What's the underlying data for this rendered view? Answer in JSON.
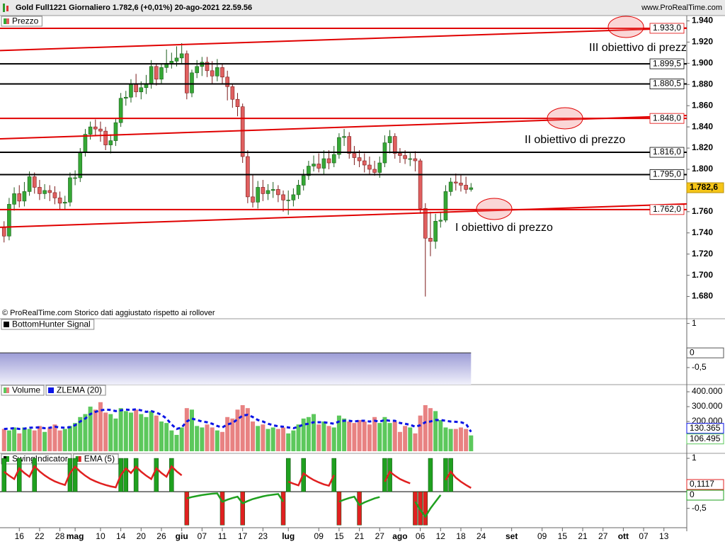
{
  "chart_data": [
    {
      "type": "candlestick",
      "title": "Gold Full1221 Giornaliero 1.782,6 (+0,01%) 20-ago-2021 22.59.56",
      "source": "www.ProRealTime.com",
      "note": "© ProRealTime.com  Storico dati aggiustato rispetto ai rollover",
      "legend": "Prezzo",
      "up_color": "#35a835",
      "down_color": "#e06060",
      "open": [
        1745,
        1737,
        1767,
        1777,
        1770,
        1779,
        1793,
        1783,
        1777,
        1780,
        1778,
        1773,
        1768,
        1769,
        1792,
        1792,
        1816,
        1833,
        1840,
        1838,
        1836,
        1823,
        1827,
        1844,
        1867,
        1868,
        1880,
        1873,
        1877,
        1881,
        1897,
        1885,
        1896,
        1900,
        1902,
        1905,
        1909,
        1872,
        1891,
        1897,
        1901,
        1893,
        1888,
        1896,
        1887,
        1878,
        1866,
        1859,
        1812,
        1774,
        1769,
        1783,
        1777,
        1780,
        1781,
        1776,
        1771,
        1771,
        1776,
        1785,
        1794,
        1803,
        1805,
        1801,
        1810,
        1806,
        1814,
        1830,
        1831,
        1815,
        1811,
        1808,
        1804,
        1800,
        1797,
        1806,
        1825,
        1831,
        1815,
        1813,
        1810,
        1810,
        1808,
        1763,
        1735,
        1732,
        1751,
        1752,
        1779,
        1788,
        1787,
        1785,
        1781
      ],
      "high": [
        1751,
        1773,
        1783,
        1785,
        1788,
        1798,
        1797,
        1790,
        1786,
        1785,
        1784,
        1779,
        1775,
        1797,
        1799,
        1820,
        1838,
        1845,
        1847,
        1845,
        1840,
        1833,
        1848,
        1872,
        1874,
        1885,
        1890,
        1883,
        1889,
        1903,
        1900,
        1900,
        1913,
        1910,
        1916,
        1919,
        1912,
        1894,
        1903,
        1906,
        1906,
        1902,
        1904,
        1900,
        1893,
        1880,
        1872,
        1862,
        1818,
        1795,
        1789,
        1790,
        1786,
        1788,
        1785,
        1780,
        1780,
        1782,
        1790,
        1800,
        1808,
        1813,
        1815,
        1818,
        1818,
        1822,
        1834,
        1838,
        1835,
        1822,
        1818,
        1815,
        1812,
        1808,
        1812,
        1832,
        1837,
        1834,
        1820,
        1818,
        1816,
        1817,
        1810,
        1768,
        1760,
        1758,
        1760,
        1785,
        1792,
        1796,
        1795,
        1793,
        1787
      ],
      "low": [
        1731,
        1733,
        1761,
        1764,
        1765,
        1775,
        1777,
        1771,
        1772,
        1770,
        1767,
        1762,
        1762,
        1765,
        1785,
        1788,
        1812,
        1828,
        1832,
        1826,
        1818,
        1815,
        1822,
        1840,
        1860,
        1863,
        1868,
        1866,
        1871,
        1876,
        1879,
        1880,
        1891,
        1895,
        1897,
        1899,
        1866,
        1868,
        1886,
        1888,
        1887,
        1880,
        1883,
        1880,
        1865,
        1858,
        1850,
        1806,
        1768,
        1764,
        1763,
        1770,
        1771,
        1773,
        1769,
        1760,
        1757,
        1765,
        1772,
        1780,
        1790,
        1798,
        1797,
        1795,
        1800,
        1802,
        1810,
        1822,
        1810,
        1804,
        1802,
        1797,
        1795,
        1794,
        1792,
        1802,
        1815,
        1810,
        1806,
        1805,
        1803,
        1798,
        1758,
        1680,
        1718,
        1725,
        1745,
        1750,
        1775,
        1780,
        1779,
        1777,
        1779
      ],
      "close": [
        1737,
        1767,
        1777,
        1770,
        1779,
        1793,
        1783,
        1777,
        1780,
        1778,
        1773,
        1768,
        1769,
        1792,
        1792,
        1816,
        1833,
        1840,
        1838,
        1836,
        1823,
        1827,
        1844,
        1867,
        1868,
        1880,
        1873,
        1877,
        1881,
        1897,
        1885,
        1896,
        1900,
        1902,
        1905,
        1909,
        1872,
        1891,
        1897,
        1901,
        1893,
        1888,
        1896,
        1887,
        1878,
        1866,
        1859,
        1812,
        1774,
        1769,
        1783,
        1777,
        1780,
        1781,
        1776,
        1771,
        1771,
        1776,
        1785,
        1794,
        1803,
        1805,
        1801,
        1810,
        1806,
        1814,
        1830,
        1831,
        1815,
        1811,
        1808,
        1804,
        1800,
        1797,
        1806,
        1825,
        1831,
        1815,
        1813,
        1810,
        1810,
        1808,
        1763,
        1735,
        1732,
        1751,
        1752,
        1779,
        1788,
        1787,
        1785,
        1781,
        1782.6
      ],
      "last_label": "1.782,6",
      "ylim": [
        1659,
        1945
      ],
      "yticks": [
        {
          "value": 1940,
          "label": "1.940"
        },
        {
          "value": 1920,
          "label": "1.920"
        },
        {
          "value": 1900,
          "label": "1.900"
        },
        {
          "value": 1880,
          "label": "1.880"
        },
        {
          "value": 1860,
          "label": "1.860"
        },
        {
          "value": 1840,
          "label": "1.840"
        },
        {
          "value": 1820,
          "label": "1.820"
        },
        {
          "value": 1800,
          "label": "1.800"
        },
        {
          "value": 1780,
          "label": "1.780"
        },
        {
          "value": 1760,
          "label": "1.760"
        },
        {
          "value": 1740,
          "label": "1.740"
        },
        {
          "value": 1720,
          "label": "1.720"
        },
        {
          "value": 1700,
          "label": "1.700"
        },
        {
          "value": 1680,
          "label": "1.680"
        }
      ],
      "levels": [
        {
          "value": 1933,
          "label": "1.933,0",
          "color": "#e00000"
        },
        {
          "value": 1899.5,
          "label": "1.899,5",
          "color": "#000000"
        },
        {
          "value": 1880.5,
          "label": "1.880,5",
          "color": "#000000"
        },
        {
          "value": 1848,
          "label": "1.848,0",
          "color": "#e00000"
        },
        {
          "value": 1816,
          "label": "1.816,0",
          "color": "#000000"
        },
        {
          "value": 1795,
          "label": "1.795,0",
          "color": "#000000"
        },
        {
          "value": 1762,
          "label": "1.762,0",
          "color": "#e00000"
        }
      ],
      "trendlines": [
        {
          "start": 1912,
          "end": 1933.3
        },
        {
          "start": 1828.7,
          "end": 1850.7
        },
        {
          "start": 1745.3,
          "end": 1767.3
        }
      ],
      "trendline_color": "#e00000",
      "annotations": [
        "III obiettivo di prezzo",
        "II obiettivo di prezzo",
        "I obiettivo di prezzo"
      ]
    },
    {
      "type": "area",
      "legend": "BottomHunter Signal",
      "values": [
        0,
        0,
        0,
        0,
        0,
        0,
        0,
        0,
        0,
        0,
        0,
        0,
        0,
        0,
        0,
        0,
        0,
        0,
        0,
        0,
        0,
        0,
        0,
        0,
        0,
        0,
        0,
        0,
        0,
        0,
        0,
        0,
        0,
        0,
        0,
        0,
        0,
        0,
        0,
        0,
        0,
        0,
        0,
        0,
        0,
        0,
        0,
        0,
        0,
        0,
        0,
        0,
        0,
        0,
        0,
        0,
        0,
        0,
        0,
        0,
        0,
        0,
        0,
        0,
        0,
        0,
        0,
        0,
        0,
        0,
        0,
        0,
        0,
        0,
        0,
        0,
        0,
        0,
        0,
        0,
        0,
        0,
        0,
        0,
        0,
        0,
        0,
        0,
        0,
        0,
        0,
        0,
        0
      ],
      "last_label": "0",
      "ylim": [
        -1.08,
        1.16
      ],
      "yticks": [
        1,
        {
          "value": -0.5,
          "label": "-0,5"
        }
      ]
    },
    {
      "type": "bar",
      "bar_colors": "price_direction",
      "series": [
        {
          "name": "Volume",
          "up_color": "#5cc85c",
          "down_color": "#e88282",
          "values": [
            150000,
            140000,
            160000,
            120000,
            160000,
            150000,
            140000,
            170000,
            130000,
            160000,
            180000,
            140000,
            150000,
            170000,
            190000,
            230000,
            250000,
            300000,
            280000,
            330000,
            260000,
            250000,
            220000,
            290000,
            270000,
            260000,
            280000,
            250000,
            230000,
            270000,
            240000,
            200000,
            190000,
            140000,
            110000,
            160000,
            290000,
            280000,
            170000,
            160000,
            180000,
            160000,
            140000,
            130000,
            230000,
            220000,
            280000,
            310000,
            290000,
            200000,
            170000,
            180000,
            150000,
            160000,
            150000,
            160000,
            120000,
            140000,
            180000,
            220000,
            230000,
            250000,
            180000,
            200000,
            170000,
            160000,
            240000,
            220000,
            200000,
            190000,
            210000,
            200000,
            180000,
            230000,
            190000,
            230000,
            190000,
            200000,
            130000,
            170000,
            160000,
            120000,
            240000,
            310000,
            290000,
            270000,
            210000,
            160000,
            150000,
            150000,
            160000,
            150000,
            106495
          ],
          "last_label": "106.495"
        },
        {
          "name": "ZLEMA (20)",
          "color": "#0a14e6",
          "dashed": true,
          "values": [
            150000,
            152000,
            155000,
            150000,
            152000,
            158000,
            160000,
            160000,
            155000,
            158000,
            165000,
            160000,
            158000,
            162000,
            175000,
            200000,
            220000,
            250000,
            265000,
            275000,
            280000,
            278000,
            270000,
            275000,
            280000,
            278000,
            282000,
            275000,
            265000,
            270000,
            260000,
            245000,
            220000,
            180000,
            150000,
            160000,
            200000,
            220000,
            210000,
            200000,
            195000,
            185000,
            170000,
            160000,
            180000,
            190000,
            215000,
            240000,
            245000,
            230000,
            210000,
            200000,
            185000,
            175000,
            168000,
            165000,
            160000,
            155000,
            165000,
            180000,
            185000,
            195000,
            195000,
            195000,
            190000,
            185000,
            200000,
            205000,
            205000,
            200000,
            205000,
            205000,
            200000,
            205000,
            200000,
            210000,
            205000,
            205000,
            190000,
            185000,
            178000,
            165000,
            175000,
            195000,
            200000,
            210000,
            210000,
            205000,
            200000,
            198000,
            195000,
            185000,
            130365
          ],
          "last_label": "130.365"
        }
      ],
      "ylim": [
        -14000,
        448000
      ],
      "yticks": [
        {
          "value": 400000,
          "label": "400.000"
        },
        {
          "value": 300000,
          "label": "300.000"
        },
        {
          "value": 200000,
          "label": "200.000"
        }
      ]
    },
    {
      "type": "bar",
      "bar_colors": "sign",
      "series": [
        {
          "name": "SwingIndicator",
          "up_color": "#1fa01f",
          "down_color": "#e02020",
          "values": [
            1,
            0,
            0,
            1,
            0,
            0,
            1,
            0,
            0,
            0,
            0,
            0,
            0,
            1,
            1,
            0,
            0,
            0,
            0,
            0,
            0,
            0,
            0,
            1,
            1,
            0,
            1,
            0,
            0,
            0,
            1,
            0,
            0,
            1,
            0,
            0,
            -1,
            0,
            0,
            0,
            0,
            0,
            0,
            -1,
            0,
            0,
            0,
            -1,
            0,
            0,
            0,
            0,
            0,
            0,
            0,
            -1,
            1,
            0,
            0,
            1,
            0,
            0,
            0,
            0,
            0,
            1,
            -1,
            0,
            0,
            0,
            -1,
            0,
            0,
            0,
            0,
            1,
            1,
            0,
            0,
            0,
            0,
            -1,
            -1,
            -1,
            1,
            0,
            0,
            1,
            1,
            0,
            0,
            0,
            0
          ],
          "last_label": "0"
        },
        {
          "name": "EMA (5)",
          "color_by": "sign",
          "up_color": "#e02020",
          "down_color": "#1fa01f",
          "values": [
            0.6,
            0.48,
            0.38,
            0.7,
            0.56,
            0.45,
            0.76,
            0.61,
            0.49,
            0.39,
            0.31,
            0.25,
            0.2,
            0.56,
            0.75,
            0.6,
            0.48,
            0.38,
            0.31,
            0.25,
            0.2,
            0.16,
            0.13,
            0.5,
            0.7,
            0.56,
            0.75,
            0.6,
            0.48,
            0.38,
            0.7,
            0.56,
            0.45,
            0.76,
            0.61,
            0.49,
            -0.2,
            -0.16,
            -0.13,
            -0.1,
            -0.08,
            -0.06,
            -0.05,
            -0.3,
            -0.24,
            -0.19,
            -0.15,
            -0.35,
            -0.28,
            -0.22,
            -0.18,
            -0.14,
            -0.11,
            -0.09,
            -0.07,
            -0.3,
            0.3,
            0.24,
            0.19,
            0.55,
            0.44,
            0.35,
            0.28,
            0.22,
            0.18,
            0.5,
            -0.3,
            -0.24,
            -0.19,
            -0.15,
            -0.4,
            -0.32,
            -0.26,
            -0.2,
            -0.16,
            0.3,
            0.6,
            0.48,
            0.38,
            0.31,
            0.25,
            -0.3,
            -0.55,
            -0.75,
            -0.5,
            -0.3,
            -0.1,
            0.35,
            0.6,
            0.42,
            0.3,
            0.2,
            0.1117
          ],
          "last_label": "0,1117"
        }
      ],
      "ylim": [
        -1.08,
        1.15
      ],
      "yticks": [
        1,
        {
          "value": -0.5,
          "label": "-0,5"
        }
      ],
      "xlim": [
        -0.8,
        134.5
      ],
      "xticks": [
        {
          "value": 3,
          "label": "16"
        },
        {
          "value": 7,
          "label": "22"
        },
        {
          "value": 11,
          "label": "28"
        },
        {
          "value": 14,
          "label": "mag"
        },
        {
          "value": 19,
          "label": "10"
        },
        {
          "value": 23,
          "label": "14"
        },
        {
          "value": 27,
          "label": "20"
        },
        {
          "value": 31,
          "label": "26"
        },
        {
          "value": 35,
          "label": "giu"
        },
        {
          "value": 39,
          "label": "07"
        },
        {
          "value": 43,
          "label": "11"
        },
        {
          "value": 47,
          "label": "17"
        },
        {
          "value": 51,
          "label": "23"
        },
        {
          "value": 56,
          "label": "lug"
        },
        {
          "value": 62,
          "label": "09"
        },
        {
          "value": 66,
          "label": "15"
        },
        {
          "value": 70,
          "label": "21"
        },
        {
          "value": 74,
          "label": "27"
        },
        {
          "value": 78,
          "label": "ago"
        },
        {
          "value": 82,
          "label": "06"
        },
        {
          "value": 86,
          "label": "12"
        },
        {
          "value": 90,
          "label": "18"
        },
        {
          "value": 94,
          "label": "24"
        },
        {
          "value": 100,
          "label": "set"
        },
        {
          "value": 106,
          "label": "09"
        },
        {
          "value": 110,
          "label": "15"
        },
        {
          "value": 114,
          "label": "21"
        },
        {
          "value": 118,
          "label": "27"
        },
        {
          "value": 122,
          "label": "ott"
        },
        {
          "value": 126,
          "label": "07"
        },
        {
          "value": 130,
          "label": "13"
        }
      ]
    }
  ]
}
